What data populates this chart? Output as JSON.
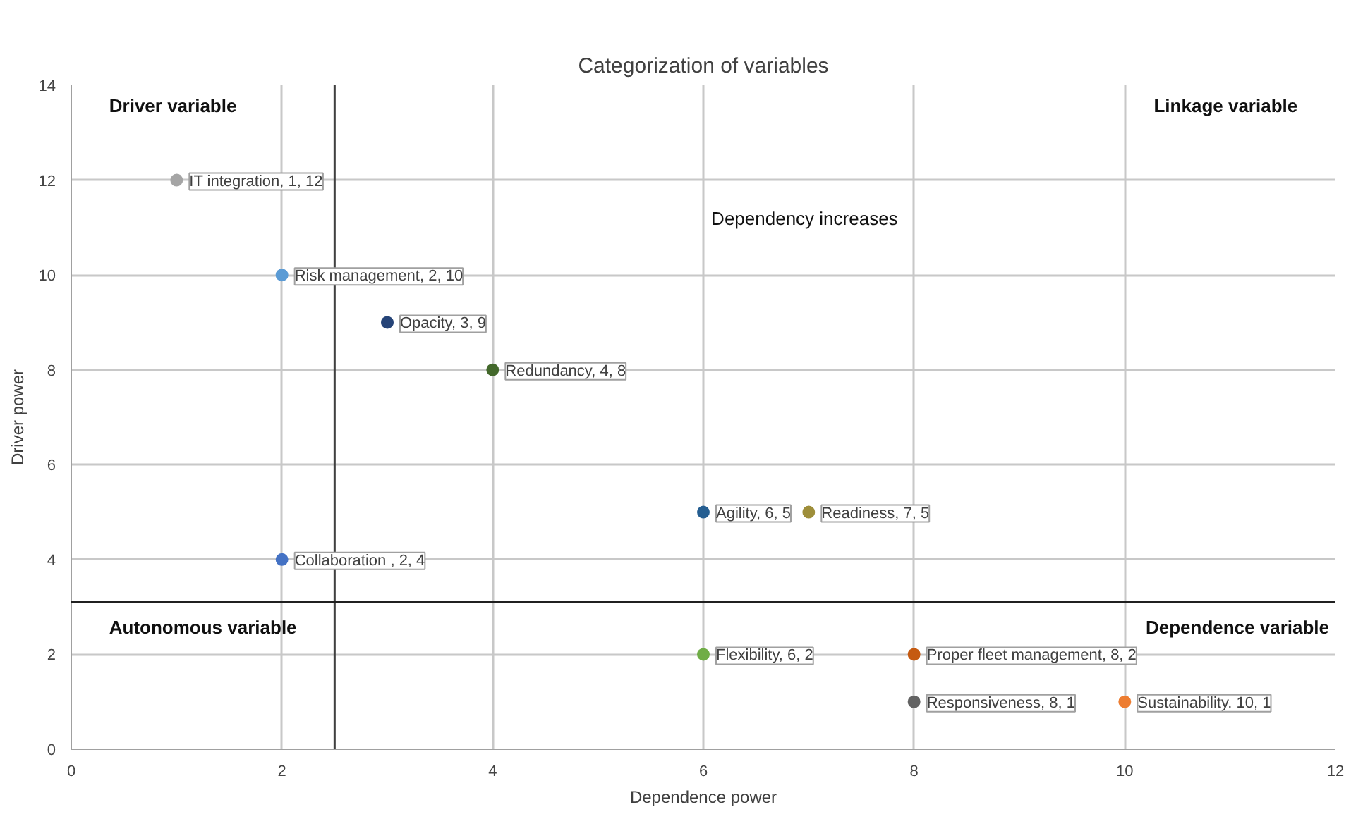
{
  "chart_data": {
    "type": "scatter",
    "title": "Categorization of variables",
    "xlabel": "Dependence power",
    "ylabel": "Driver power",
    "x": [
      1,
      2,
      3,
      4,
      2,
      6,
      7,
      6,
      8,
      8,
      10
    ],
    "values": [
      12,
      10,
      9,
      8,
      4,
      5,
      5,
      2,
      2,
      1,
      1
    ],
    "colors": [
      "#a5a5a5",
      "#5b9bd5",
      "#264478",
      "#43682b",
      "#4472c4",
      "#255e91",
      "#9e8e3a",
      "#70ad47",
      "#c55a11",
      "#636363",
      "#ed7d31"
    ],
    "value_labels": [
      "IT integration, 1, 12",
      "Risk management, 2, 10",
      "Opacity, 3, 9",
      "Redundancy, 4, 8",
      "Collaboration , 2, 4",
      "Agility, 6, 5",
      "Readiness, 7, 5",
      "Flexibility, 6, 2",
      "Proper fleet management, 8, 2",
      "Responsiveness, 8, 1",
      "Sustainability. 10, 1"
    ],
    "xlim": [
      0,
      12
    ],
    "xticks": [
      0,
      2,
      4,
      6,
      8,
      10,
      12
    ],
    "ylim": [
      0,
      14
    ],
    "yticks": [
      0,
      2,
      4,
      6,
      8,
      10,
      12,
      14
    ],
    "grid": true,
    "marker": "circle",
    "ref_lines": [
      {
        "axis": "x",
        "value": 2.5,
        "color": "#404040"
      },
      {
        "axis": "y",
        "value": 3.1,
        "color": "#202020"
      }
    ],
    "annotations": [
      "Driver variable",
      "Linkage variable",
      "Dependency increases",
      "Autonomous variable",
      "Dependence variable"
    ]
  }
}
